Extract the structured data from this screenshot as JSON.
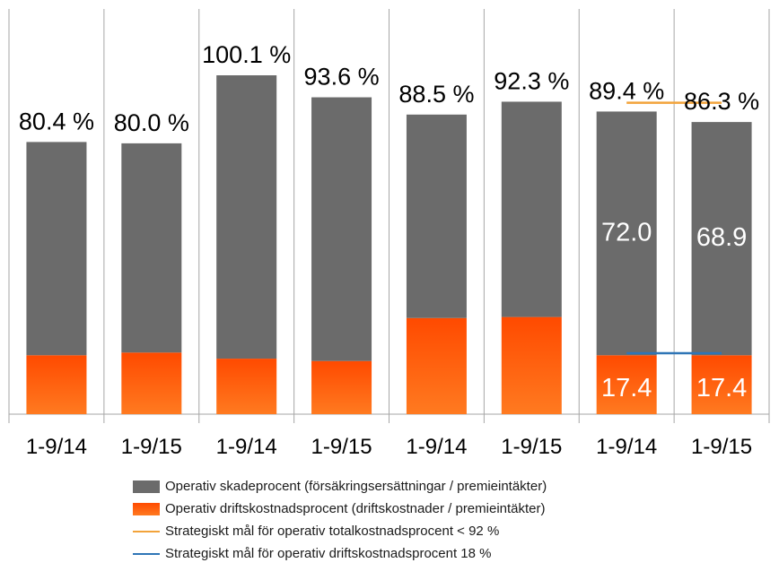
{
  "chart_data": {
    "type": "bar",
    "stacked": true,
    "categories": [
      "1-9/14",
      "1-9/15",
      "1-9/14",
      "1-9/15",
      "1-9/14",
      "1-9/15",
      "1-9/14",
      "1-9/15"
    ],
    "totals": [
      80.4,
      80.0,
      100.1,
      93.6,
      88.5,
      92.3,
      89.4,
      86.3
    ],
    "total_labels": [
      "80.4 %",
      "80.0 %",
      "100.1 %",
      "93.6 %",
      "88.5 %",
      "92.3 %",
      "89.4 %",
      "86.3 %"
    ],
    "series": [
      {
        "name": "Operativ driftskostnadsprocent (driftskostnader / premieintäkter)",
        "color": "#f05a0a",
        "values": [
          17.4,
          18.2,
          16.4,
          15.7,
          28.4,
          28.7,
          17.4,
          17.4
        ],
        "labels": [
          "",
          "",
          "",
          "",
          "",
          "",
          "17.4",
          "17.4"
        ]
      },
      {
        "name": "Operativ skadeprocent (försäkringsersättningar / premieintäkter)",
        "color": "#6b6b6b",
        "values": [
          63.0,
          61.8,
          83.7,
          77.9,
          60.1,
          63.6,
          72.0,
          68.9
        ],
        "labels": [
          "",
          "",
          "",
          "",
          "",
          "",
          "72.0",
          "68.9"
        ]
      }
    ],
    "targets": [
      {
        "name": "Strategiskt mål för operativ totalkostnadsprocent < 92 %",
        "value": 92,
        "color": "#f2a33a",
        "categories": [
          6,
          7
        ]
      },
      {
        "name": "Strategiskt mål för operativ driftskostnadsprocent 18 %",
        "value": 18,
        "color": "#2e75b6",
        "categories": [
          6,
          7
        ]
      }
    ],
    "ylim": [
      0,
      120
    ],
    "grid": false,
    "legend_position": "bottom",
    "xlabel": "",
    "ylabel": "",
    "title": ""
  },
  "legend": [
    {
      "kind": "box",
      "color": "#6b6b6b",
      "label": "Operativ skadeprocent (försäkringsersättningar / premieintäkter)"
    },
    {
      "kind": "box",
      "color": "#f05a0a",
      "label": "Operativ driftskostnadsprocent (driftskostnader / premieintäkter)"
    },
    {
      "kind": "line",
      "color": "#f2a33a",
      "label": "Strategiskt mål för operativ totalkostnadsprocent < 92 %"
    },
    {
      "kind": "line",
      "color": "#2e75b6",
      "label": "Strategiskt mål för operativ driftskostnadsprocent 18 %"
    }
  ]
}
